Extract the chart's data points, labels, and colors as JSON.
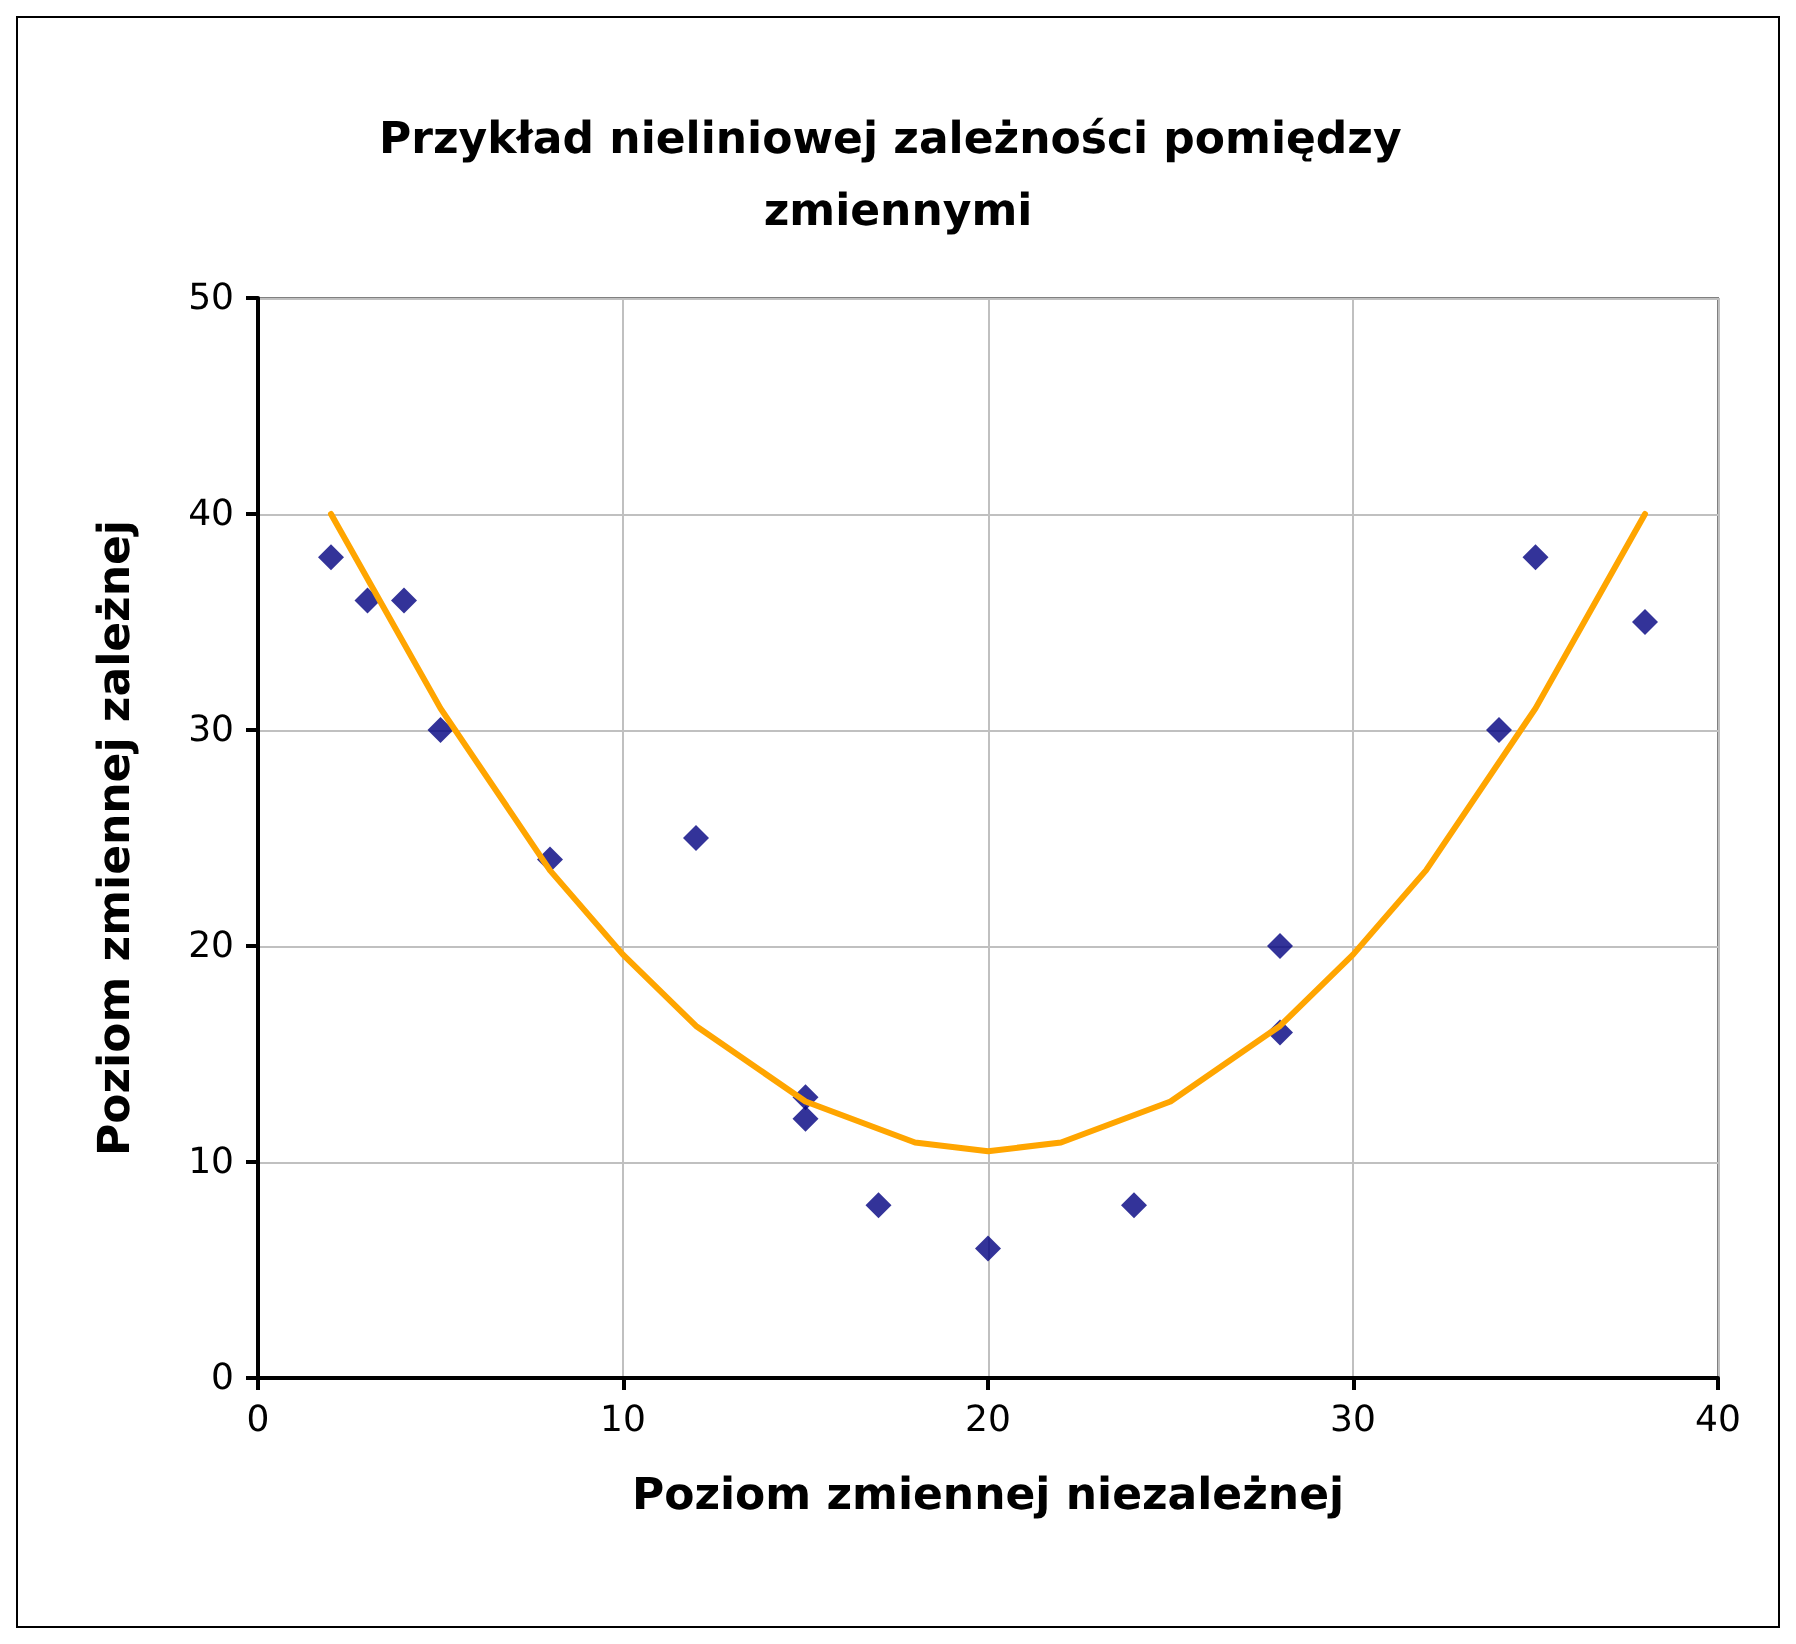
{
  "chart_data": {
    "type": "scatter",
    "title": "Przykład nieliniowej zależności pomiędzy zmiennymi",
    "xlabel": "Poziom zmiennej niezależnej",
    "ylabel": "Poziom zmiennej zależnej",
    "xlim": [
      0,
      40
    ],
    "xticks": [
      0,
      10,
      20,
      30,
      40
    ],
    "ylim": [
      0,
      50
    ],
    "yticks": [
      0,
      10,
      20,
      30,
      40,
      50
    ],
    "grid": true,
    "series": [
      {
        "color": "#000080",
        "marker": "diamond",
        "x": [
          2,
          3,
          4,
          5,
          8,
          12,
          15,
          15,
          17,
          20,
          24,
          28,
          28,
          34,
          35,
          38
        ],
        "values": [
          38,
          36,
          36,
          30,
          24,
          25,
          13,
          12,
          8,
          6,
          8,
          20,
          16,
          30,
          38,
          35
        ]
      },
      {
        "type": "line",
        "color": "#ffa500",
        "marker": "none",
        "line_style": "solid",
        "x": [
          2,
          5,
          8,
          10,
          12,
          15,
          18,
          20,
          22,
          25,
          28,
          30,
          32,
          35,
          38
        ],
        "values": [
          40,
          31,
          23.5,
          19.6,
          16.3,
          12.8,
          10.9,
          10.5,
          10.9,
          12.8,
          16.3,
          19.6,
          23.5,
          31,
          40
        ]
      }
    ]
  }
}
